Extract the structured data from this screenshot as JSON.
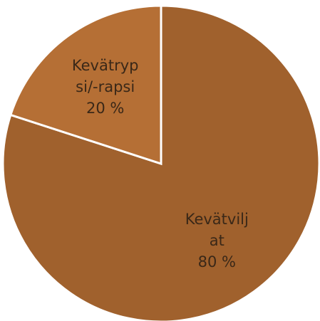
{
  "chart_data": {
    "type": "pie",
    "categories": [
      "Kevätviljat",
      "Kevätrypsi/-rapsi"
    ],
    "values": [
      80,
      20
    ],
    "value_labels": [
      "80 %",
      "20 %"
    ],
    "colors": [
      "#a0612d",
      "#b56f35"
    ]
  }
}
